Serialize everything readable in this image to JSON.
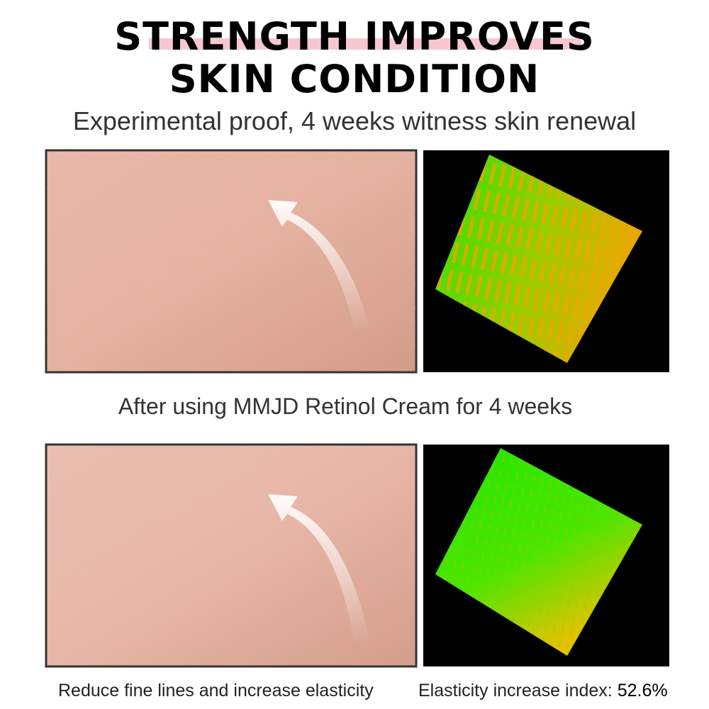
{
  "header": {
    "title_lines": [
      "STRENGTH IMPROVES",
      "SKIN CONDITION"
    ],
    "subtitle": "Experimental proof, 4 weeks witness skin renewal"
  },
  "middle_caption": "After using MMJD Retinol Cream for 4 weeks",
  "footer": {
    "left": "Reduce fine lines and increase elasticity",
    "right_label": "Elasticity increase index:",
    "right_value": "52.6%"
  }
}
